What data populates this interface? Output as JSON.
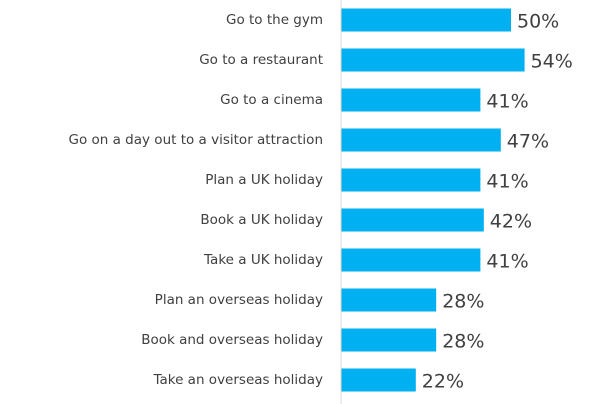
{
  "chart_data": {
    "type": "bar",
    "orientation": "horizontal",
    "color": "#00b0f0",
    "categories": [
      "Go to the gym",
      "Go to a restaurant",
      "Go to a cinema",
      "Go on a day out to a visitor attraction",
      "Plan a UK holiday",
      "Book a UK holiday",
      "Take a UK holiday",
      "Plan an overseas holiday",
      "Book and overseas holiday",
      "Take an overseas holiday"
    ],
    "values": [
      50,
      54,
      41,
      47,
      41,
      42,
      41,
      28,
      28,
      22
    ],
    "value_labels": [
      "50%",
      "54%",
      "41%",
      "47%",
      "41%",
      "42%",
      "41%",
      "28%",
      "28%",
      "22%"
    ]
  }
}
